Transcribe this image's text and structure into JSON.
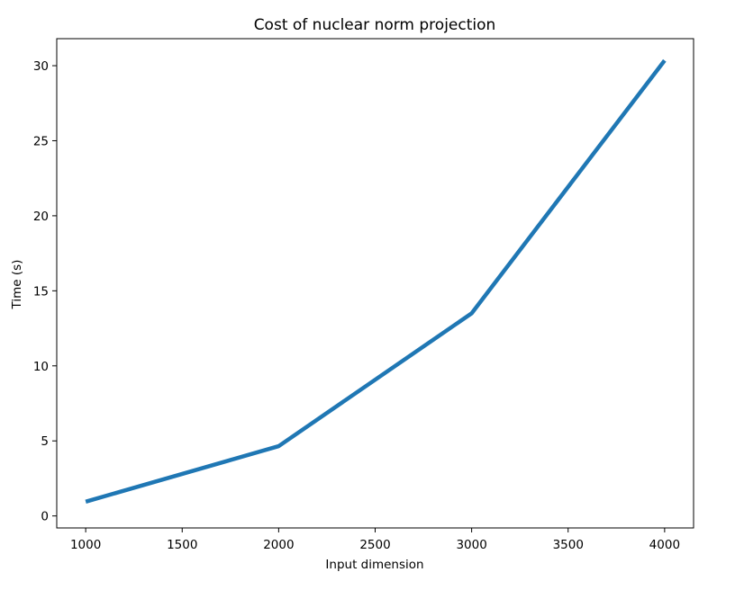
{
  "chart_data": {
    "type": "line",
    "title": "Cost of nuclear norm projection",
    "xlabel": "Input dimension",
    "ylabel": "Time (s)",
    "x": [
      1000,
      2000,
      3000,
      4000
    ],
    "series": [
      {
        "values": [
          0.95,
          4.65,
          13.5,
          30.35
        ],
        "color": "#1f77b4"
      }
    ],
    "xlim": [
      850,
      4150
    ],
    "ylim": [
      -0.8,
      31.8
    ],
    "xticks": [
      1000,
      1500,
      2000,
      2500,
      3000,
      3500,
      4000
    ],
    "yticks": [
      0,
      5,
      10,
      15,
      20,
      25,
      30
    ],
    "grid": false,
    "legend": false
  }
}
